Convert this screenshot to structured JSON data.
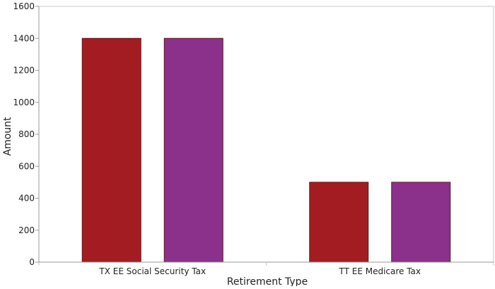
{
  "chart_data": {
    "type": "bar",
    "categories": [
      "TX EE Social Security Tax",
      "TT EE Medicare Tax"
    ],
    "series": [
      {
        "values": [
          1400,
          500
        ],
        "color": "#A31C22"
      },
      {
        "values": [
          1400,
          500
        ],
        "color": "#8B318B"
      }
    ],
    "xlabel": "Retirement Type",
    "ylabel": "Amount",
    "ylim": [
      0,
      1600
    ],
    "yticks": [
      0,
      200,
      400,
      600,
      800,
      1000,
      1200,
      1400,
      1600
    ],
    "grid": false,
    "colors": {
      "axis": "#9a9a9a",
      "bar_stroke": "#5a1a1a"
    }
  }
}
